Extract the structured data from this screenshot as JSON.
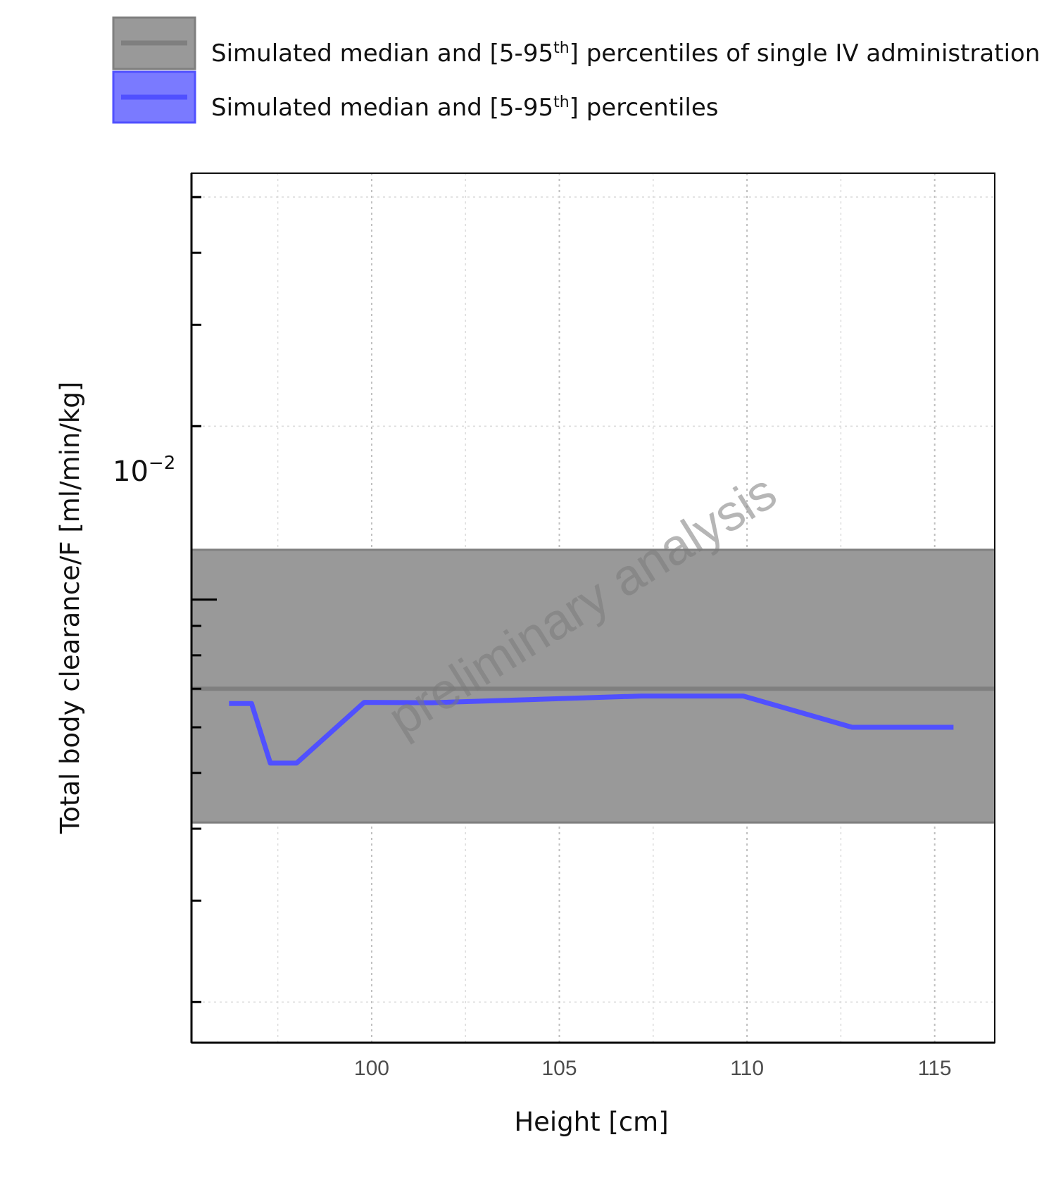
{
  "chart_data": {
    "type": "line",
    "title": "",
    "xlabel": "Height [cm]",
    "ylabel": "Total body clearance/F [ml/min/kg]",
    "x_ticks": [
      "100",
      "105",
      "110",
      "115"
    ],
    "y_tick_label": {
      "base": "10",
      "exponent": "−2",
      "value": 0.01
    },
    "x_range": [
      95.2,
      116.6
    ],
    "y_range": [
      0.0017,
      0.055
    ],
    "y_scale": "log",
    "grid": true,
    "legend_position": "top",
    "watermark": "preliminary analysis",
    "legend": [
      {
        "pre": "Simulated median and [5-95",
        "sup": "th",
        "post": "] percentiles of single IV administration",
        "color": "#7f7f7f"
      },
      {
        "pre": "Simulated median and [5-95",
        "sup": "th",
        "post": "] percentiles",
        "color": "#5050ff"
      }
    ],
    "series": [
      {
        "name": "Simulated median and [5-95th] percentiles of single IV administration",
        "kind": "band",
        "color": "#7f7f7f",
        "band_low": 0.0041,
        "band_high": 0.0122,
        "median": 0.007
      },
      {
        "name": "Simulated median and [5-95th] percentiles",
        "kind": "line",
        "color": "#5050ff",
        "x": [
          96.2,
          96.8,
          97.3,
          98.0,
          99.8,
          101.6,
          107.2,
          109.9,
          112.8,
          115.5
        ],
        "y": [
          0.0066,
          0.0066,
          0.0052,
          0.0052,
          0.00663,
          0.00662,
          0.0068,
          0.0068,
          0.006,
          0.006
        ]
      }
    ]
  }
}
